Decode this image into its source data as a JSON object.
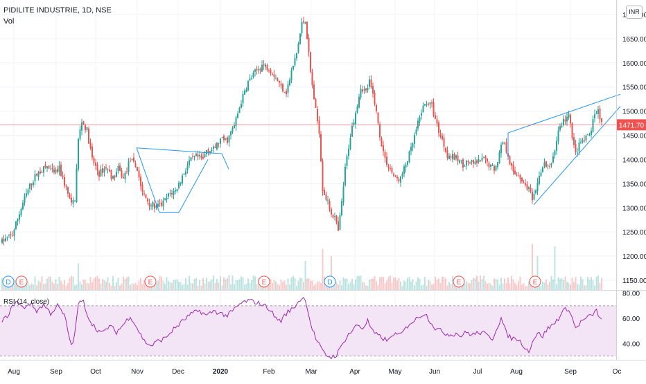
{
  "header": {
    "title": "PIDILITE INDUSTRIE, 1D, NSE",
    "volume_label": "Vol",
    "currency_badge": "INR",
    "rsi_label": "RSI (14, close)"
  },
  "colors": {
    "up": "#26a69a",
    "down": "#ef5350",
    "trendline": "#2196f3",
    "rsi_line": "#9c27b0",
    "rsi_band": "#f3e5f5",
    "last_price": "#ef5350"
  },
  "chart_data": [
    {
      "type": "candlestick",
      "title": "PIDILITE INDUSTRIE, 1D, NSE",
      "x_tick_labels": [
        "Aug",
        "Sep",
        "Oct",
        "Nov",
        "Dec",
        "2020",
        "Feb",
        "Mar",
        "Apr",
        "May",
        "Jun",
        "Jul",
        "Aug",
        "Sep",
        "Oc"
      ],
      "y_ticks": [
        1150,
        1200,
        1250,
        1300,
        1350,
        1400,
        1450,
        1500,
        1550,
        1600,
        1650,
        1700
      ],
      "y_tick_labels": [
        "1150.00",
        "1200.00",
        "1250.00",
        "1300.00",
        "1350.00",
        "1400.00",
        "1450.00",
        "1500.00",
        "1550.00",
        "1600.00",
        "1650.00",
        "1700.00"
      ],
      "ylim": [
        1130,
        1730
      ],
      "last_price": 1471.7,
      "last_price_label": "1471.70",
      "anchors": [
        [
          0,
          1230
        ],
        [
          6,
          1245
        ],
        [
          12,
          1310
        ],
        [
          16,
          1345
        ],
        [
          20,
          1370
        ],
        [
          26,
          1385
        ],
        [
          30,
          1370
        ],
        [
          33,
          1380
        ],
        [
          37,
          1340
        ],
        [
          40,
          1305
        ],
        [
          42,
          1320
        ],
        [
          44,
          1440
        ],
        [
          46,
          1480
        ],
        [
          49,
          1460
        ],
        [
          52,
          1400
        ],
        [
          56,
          1370
        ],
        [
          60,
          1385
        ],
        [
          64,
          1360
        ],
        [
          67,
          1380
        ],
        [
          70,
          1360
        ],
        [
          74,
          1400
        ],
        [
          78,
          1380
        ],
        [
          81,
          1330
        ],
        [
          85,
          1310
        ],
        [
          89,
          1300
        ],
        [
          93,
          1310
        ],
        [
          97,
          1330
        ],
        [
          100,
          1335
        ],
        [
          104,
          1365
        ],
        [
          108,
          1395
        ],
        [
          112,
          1405
        ],
        [
          116,
          1400
        ],
        [
          118,
          1420
        ],
        [
          122,
          1420
        ],
        [
          126,
          1440
        ],
        [
          130,
          1440
        ],
        [
          134,
          1470
        ],
        [
          138,
          1520
        ],
        [
          142,
          1560
        ],
        [
          146,
          1580
        ],
        [
          150,
          1595
        ],
        [
          154,
          1590
        ],
        [
          158,
          1570
        ],
        [
          161,
          1550
        ],
        [
          164,
          1540
        ],
        [
          167,
          1580
        ],
        [
          170,
          1620
        ],
        [
          173,
          1680
        ],
        [
          175,
          1690
        ],
        [
          178,
          1580
        ],
        [
          181,
          1500
        ],
        [
          183,
          1460
        ],
        [
          185,
          1340
        ],
        [
          188,
          1310
        ],
        [
          190,
          1290
        ],
        [
          192,
          1280
        ],
        [
          194,
          1250
        ],
        [
          196,
          1310
        ],
        [
          198,
          1380
        ],
        [
          201,
          1450
        ],
        [
          204,
          1500
        ],
        [
          207,
          1550
        ],
        [
          210,
          1540
        ],
        [
          212,
          1560
        ],
        [
          215,
          1520
        ],
        [
          218,
          1450
        ],
        [
          221,
          1400
        ],
        [
          224,
          1380
        ],
        [
          227,
          1360
        ],
        [
          230,
          1360
        ],
        [
          233,
          1390
        ],
        [
          236,
          1420
        ],
        [
          239,
          1460
        ],
        [
          242,
          1500
        ],
        [
          245,
          1520
        ],
        [
          248,
          1510
        ],
        [
          251,
          1470
        ],
        [
          254,
          1440
        ],
        [
          257,
          1410
        ],
        [
          260,
          1405
        ],
        [
          263,
          1400
        ],
        [
          266,
          1390
        ],
        [
          269,
          1395
        ],
        [
          272,
          1390
        ],
        [
          275,
          1395
        ],
        [
          278,
          1400
        ],
        [
          281,
          1390
        ],
        [
          284,
          1380
        ],
        [
          286,
          1400
        ],
        [
          289,
          1440
        ],
        [
          292,
          1410
        ],
        [
          295,
          1370
        ],
        [
          298,
          1370
        ],
        [
          301,
          1350
        ],
        [
          304,
          1340
        ],
        [
          306,
          1315
        ],
        [
          308,
          1330
        ],
        [
          310,
          1370
        ],
        [
          313,
          1390
        ],
        [
          316,
          1380
        ],
        [
          319,
          1420
        ],
        [
          321,
          1460
        ],
        [
          324,
          1480
        ],
        [
          327,
          1490
        ],
        [
          329,
          1450
        ],
        [
          331,
          1410
        ],
        [
          333,
          1430
        ],
        [
          336,
          1440
        ],
        [
          339,
          1450
        ],
        [
          342,
          1490
        ],
        [
          344,
          1505
        ],
        [
          346,
          1472
        ]
      ],
      "volume_range": [
        0,
        1
      ]
    },
    {
      "type": "line",
      "title": "RSI (14, close)",
      "y_ticks": [
        40,
        60,
        80
      ],
      "y_tick_labels": [
        "40.00",
        "60.00",
        "80.00"
      ],
      "band": [
        30,
        70
      ],
      "ylim": [
        27,
        82
      ],
      "anchors": [
        [
          0,
          57
        ],
        [
          4,
          64
        ],
        [
          8,
          74
        ],
        [
          12,
          68
        ],
        [
          16,
          72
        ],
        [
          20,
          66
        ],
        [
          24,
          71
        ],
        [
          28,
          64
        ],
        [
          32,
          70
        ],
        [
          36,
          62
        ],
        [
          40,
          38
        ],
        [
          42,
          47
        ],
        [
          44,
          72
        ],
        [
          47,
          73
        ],
        [
          50,
          60
        ],
        [
          54,
          52
        ],
        [
          58,
          48
        ],
        [
          62,
          54
        ],
        [
          66,
          49
        ],
        [
          70,
          55
        ],
        [
          74,
          62
        ],
        [
          78,
          52
        ],
        [
          82,
          42
        ],
        [
          86,
          38
        ],
        [
          90,
          42
        ],
        [
          94,
          44
        ],
        [
          98,
          50
        ],
        [
          102,
          55
        ],
        [
          106,
          60
        ],
        [
          110,
          64
        ],
        [
          114,
          66
        ],
        [
          118,
          62
        ],
        [
          122,
          66
        ],
        [
          126,
          64
        ],
        [
          130,
          62
        ],
        [
          134,
          67
        ],
        [
          138,
          72
        ],
        [
          142,
          74
        ],
        [
          146,
          73
        ],
        [
          150,
          71
        ],
        [
          154,
          68
        ],
        [
          158,
          60
        ],
        [
          161,
          58
        ],
        [
          164,
          64
        ],
        [
          168,
          68
        ],
        [
          172,
          75
        ],
        [
          175,
          76
        ],
        [
          178,
          56
        ],
        [
          181,
          44
        ],
        [
          184,
          36
        ],
        [
          186,
          32
        ],
        [
          188,
          30
        ],
        [
          190,
          29
        ],
        [
          193,
          31
        ],
        [
          196,
          38
        ],
        [
          199,
          46
        ],
        [
          202,
          50
        ],
        [
          205,
          55
        ],
        [
          208,
          52
        ],
        [
          211,
          58
        ],
        [
          214,
          49
        ],
        [
          217,
          46
        ],
        [
          220,
          44
        ],
        [
          223,
          42
        ],
        [
          226,
          48
        ],
        [
          229,
          46
        ],
        [
          232,
          50
        ],
        [
          235,
          56
        ],
        [
          238,
          58
        ],
        [
          241,
          62
        ],
        [
          244,
          64
        ],
        [
          247,
          58
        ],
        [
          250,
          52
        ],
        [
          253,
          50
        ],
        [
          256,
          48
        ],
        [
          259,
          47
        ],
        [
          262,
          48
        ],
        [
          265,
          46
        ],
        [
          268,
          49
        ],
        [
          271,
          47
        ],
        [
          274,
          48
        ],
        [
          277,
          49
        ],
        [
          280,
          46
        ],
        [
          283,
          44
        ],
        [
          286,
          54
        ],
        [
          288,
          60
        ],
        [
          291,
          48
        ],
        [
          294,
          44
        ],
        [
          297,
          44
        ],
        [
          300,
          40
        ],
        [
          302,
          37
        ],
        [
          304,
          33
        ],
        [
          306,
          42
        ],
        [
          309,
          48
        ],
        [
          312,
          46
        ],
        [
          315,
          52
        ],
        [
          318,
          55
        ],
        [
          321,
          60
        ],
        [
          324,
          66
        ],
        [
          327,
          68
        ],
        [
          329,
          60
        ],
        [
          331,
          52
        ],
        [
          334,
          57
        ],
        [
          337,
          60
        ],
        [
          340,
          62
        ],
        [
          343,
          66
        ],
        [
          346,
          58
        ]
      ]
    }
  ],
  "events": {
    "labels": [
      "D",
      "E",
      "E",
      "E",
      "D",
      "E",
      "E"
    ]
  }
}
